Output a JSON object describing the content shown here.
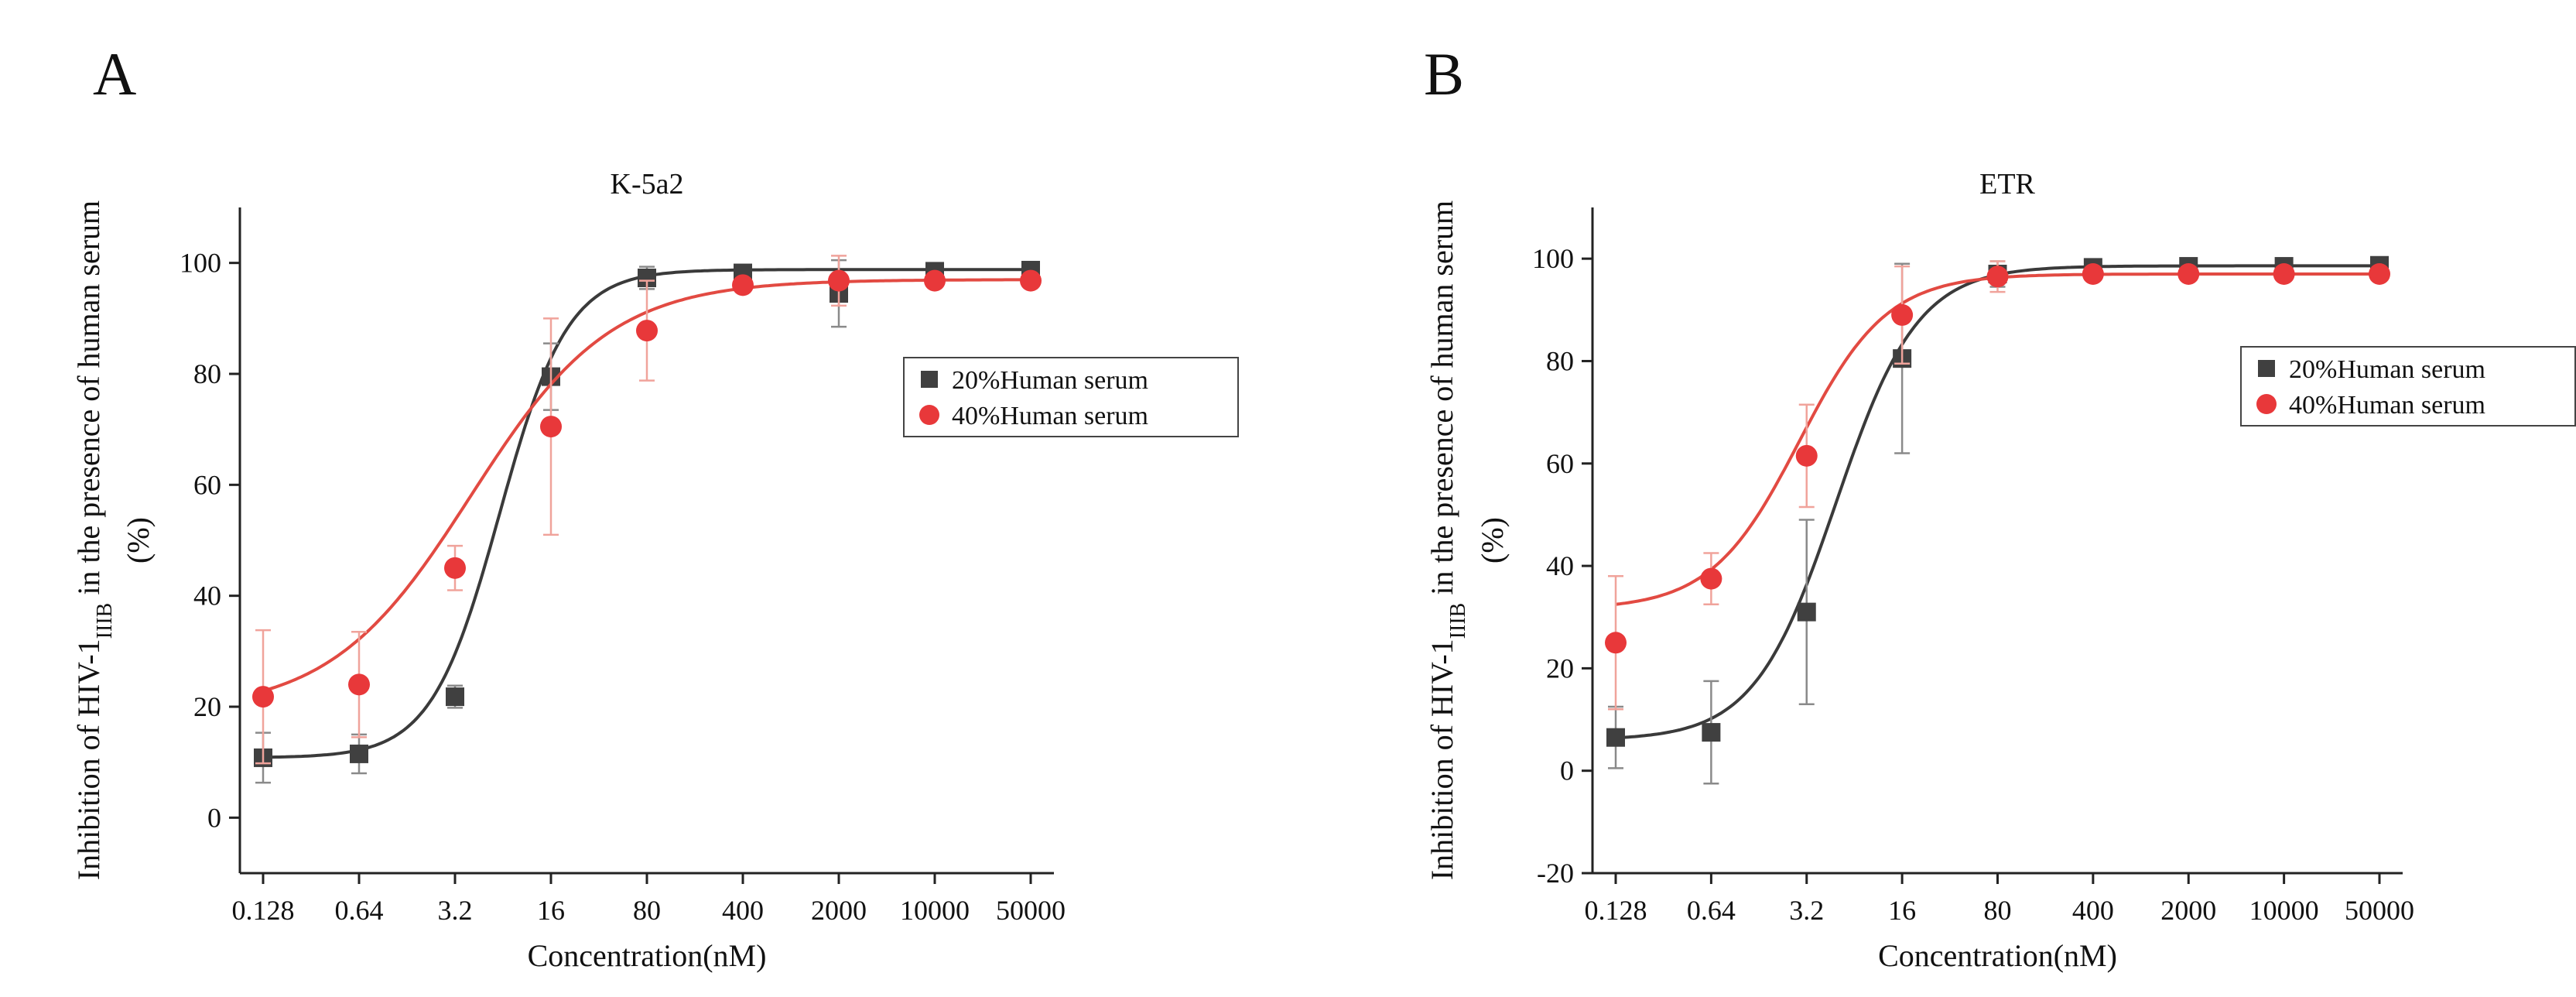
{
  "colors": {
    "series_20": "#404040",
    "series_40": "#e8383a",
    "fit_20": "#3a3a3a",
    "fit_40": "#e24a42",
    "errorbar_20": "#8a8a8a",
    "errorbar_40": "#f0a39b",
    "axis": "#222222"
  },
  "chart_data": [
    {
      "panel_label": "A",
      "title": "K-5a2",
      "type": "scatter",
      "xscale": "log",
      "x_ticks": [
        "0.128",
        "0.64",
        "3.2",
        "16",
        "80",
        "400",
        "2000",
        "10000",
        "50000"
      ],
      "x": [
        0.128,
        0.64,
        3.2,
        16,
        80,
        400,
        2000,
        10000,
        50000
      ],
      "ylim": [
        -10,
        110
      ],
      "y_ticks": [
        0,
        20,
        40,
        60,
        80,
        100
      ],
      "xlabel": "Concentration(nM)",
      "ylabel_main": "Inhibition of HIV-1",
      "ylabel_sub": "IIIB",
      "ylabel_rest": " in the presence of human serum",
      "ylabel_unit": "(%)",
      "legend_position": "right",
      "series": [
        {
          "name": "20%Human serum",
          "marker": "square",
          "color": "#404040",
          "values": [
            10.8,
            11.5,
            21.8,
            79.5,
            97.3,
            98.2,
            94.5,
            98.5,
            98.7
          ],
          "errors": [
            4.5,
            3.5,
            2.0,
            6.0,
            2.0,
            1.0,
            6.0,
            1.2,
            1.0
          ],
          "fit": {
            "bottom": 10.8,
            "top": 98.8,
            "log_ec50": 0.83,
            "hill": 1.75
          }
        },
        {
          "name": "40%Human serum",
          "marker": "circle",
          "color": "#e8383a",
          "values": [
            21.8,
            24.0,
            45.0,
            70.5,
            87.8,
            96.0,
            96.8,
            96.8,
            96.8
          ],
          "errors": [
            12.0,
            9.5,
            4.0,
            19.5,
            9.0,
            1.2,
            4.5,
            1.0,
            1.0
          ],
          "fit": {
            "bottom": 19.0,
            "top": 97.0,
            "log_ec50": 0.62,
            "hill": 0.85
          }
        }
      ]
    },
    {
      "panel_label": "B",
      "title": "ETR",
      "type": "scatter",
      "xscale": "log",
      "x_ticks": [
        "0.128",
        "0.64",
        "3.2",
        "16",
        "80",
        "400",
        "2000",
        "10000",
        "50000"
      ],
      "x": [
        0.128,
        0.64,
        3.2,
        16,
        80,
        400,
        2000,
        10000,
        50000
      ],
      "ylim": [
        -20,
        110
      ],
      "y_ticks": [
        -20,
        0,
        20,
        40,
        60,
        80,
        100
      ],
      "xlabel": "Concentration(nM)",
      "ylabel_main": "Inhibition of HIV-1",
      "ylabel_sub": "IIIB",
      "ylabel_rest": " in the presence of human serum",
      "ylabel_unit": "(%)",
      "legend_position": "right",
      "series": [
        {
          "name": "20%Human serum",
          "marker": "square",
          "color": "#404040",
          "values": [
            6.5,
            7.5,
            31.0,
            80.5,
            97.0,
            98.3,
            98.5,
            98.5,
            98.7
          ],
          "errors": [
            6.0,
            10.0,
            18.0,
            18.5,
            2.5,
            1.0,
            1.0,
            1.0,
            0.8
          ],
          "fit": {
            "bottom": 6.0,
            "top": 98.6,
            "log_ec50": 0.72,
            "hill": 1.45
          }
        },
        {
          "name": "40%Human serum",
          "marker": "circle",
          "color": "#e8383a",
          "values": [
            25.0,
            37.5,
            61.5,
            89.0,
            96.5,
            97.0,
            97.0,
            97.0,
            97.0
          ],
          "errors": [
            13.0,
            5.0,
            10.0,
            9.5,
            3.0,
            1.0,
            1.0,
            1.0,
            1.0
          ],
          "fit": {
            "bottom": 31.5,
            "top": 97.0,
            "log_ec50": 0.45,
            "hill": 1.35
          }
        }
      ]
    }
  ]
}
